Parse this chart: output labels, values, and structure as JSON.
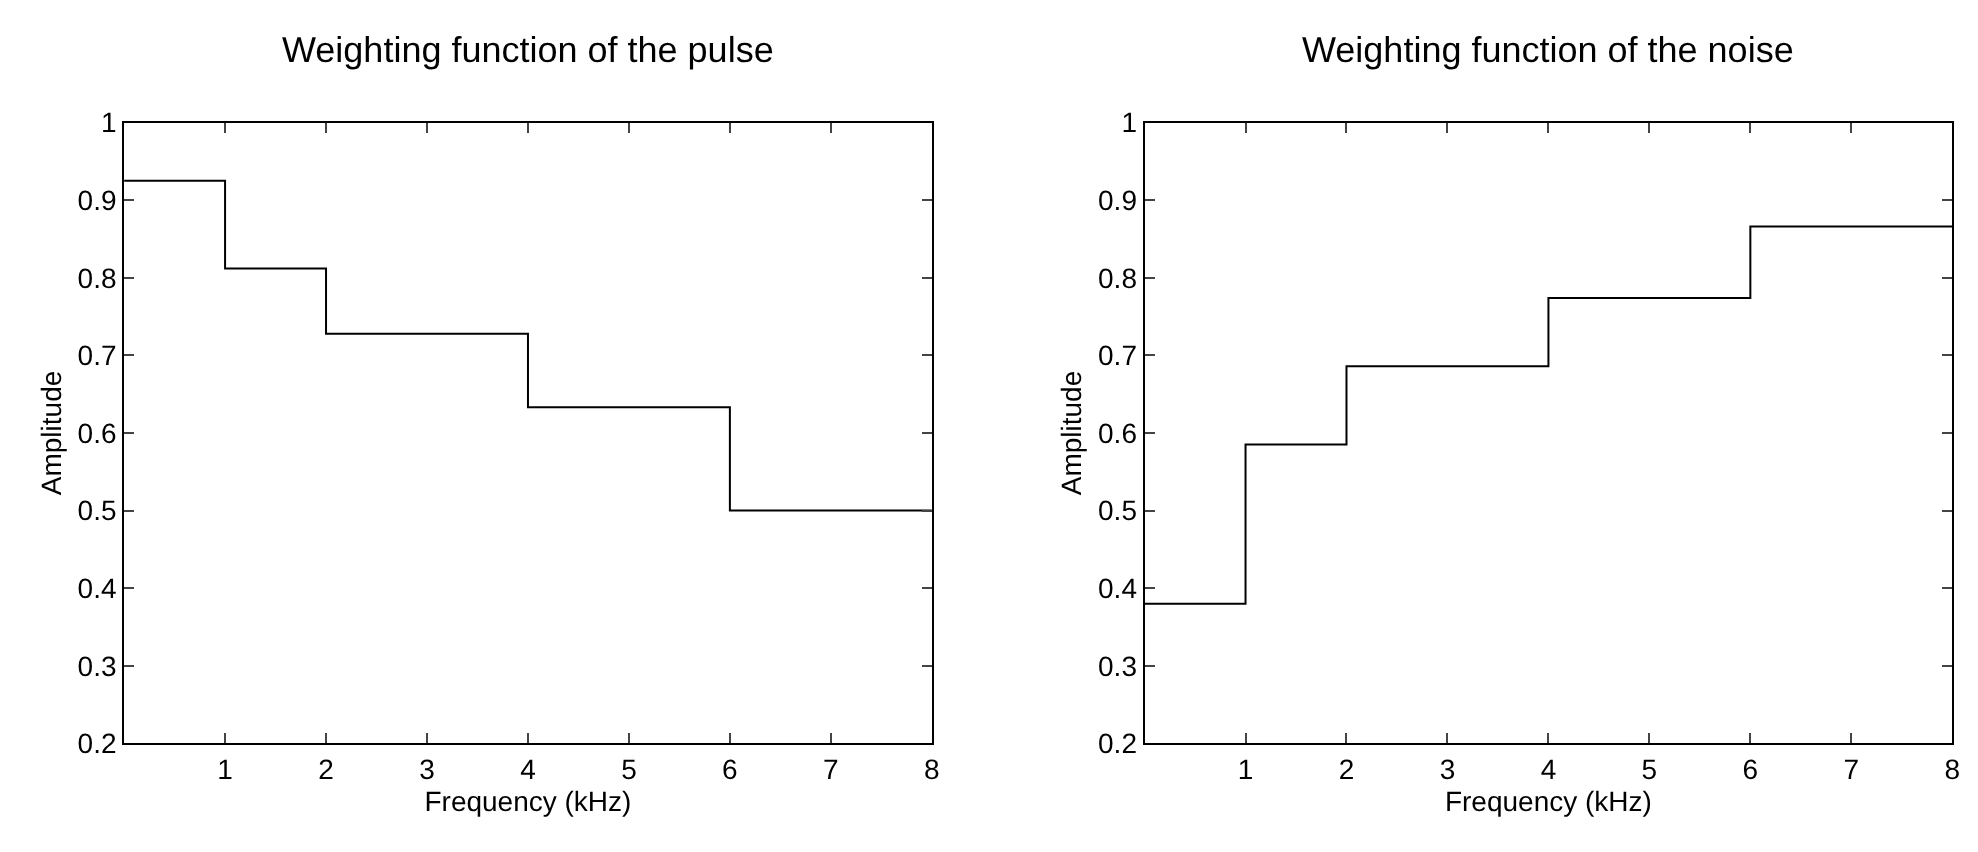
{
  "chart_data": [
    {
      "type": "step",
      "title": "Weighting function of the pulse",
      "xlabel": "Frequency (kHz)",
      "ylabel": "Amplitude",
      "x": [
        0,
        1,
        2,
        4,
        6,
        8
      ],
      "series": [
        {
          "color": "#000000",
          "values": [
            0.925,
            0.812,
            0.728,
            0.633,
            0.5,
            0.5
          ]
        }
      ],
      "xlim": [
        0,
        8
      ],
      "xticks": [
        1,
        2,
        3,
        4,
        5,
        6,
        7,
        8
      ],
      "ylim": [
        0.2,
        1
      ],
      "yticks": [
        0.2,
        0.3,
        0.4,
        0.5,
        0.6,
        0.7,
        0.8,
        0.9,
        1
      ]
    },
    {
      "type": "step",
      "title": "Weighting function of the noise",
      "xlabel": "Frequency (kHz)",
      "ylabel": "Amplitude",
      "x": [
        0,
        1,
        2,
        4,
        6,
        8
      ],
      "series": [
        {
          "color": "#000000",
          "values": [
            0.38,
            0.585,
            0.686,
            0.774,
            0.866,
            0.866
          ]
        }
      ],
      "xlim": [
        0,
        8
      ],
      "xticks": [
        1,
        2,
        3,
        4,
        5,
        6,
        7,
        8
      ],
      "ylim": [
        0.2,
        1
      ],
      "yticks": [
        0.2,
        0.3,
        0.4,
        0.5,
        0.6,
        0.7,
        0.8,
        0.9,
        1
      ]
    }
  ]
}
